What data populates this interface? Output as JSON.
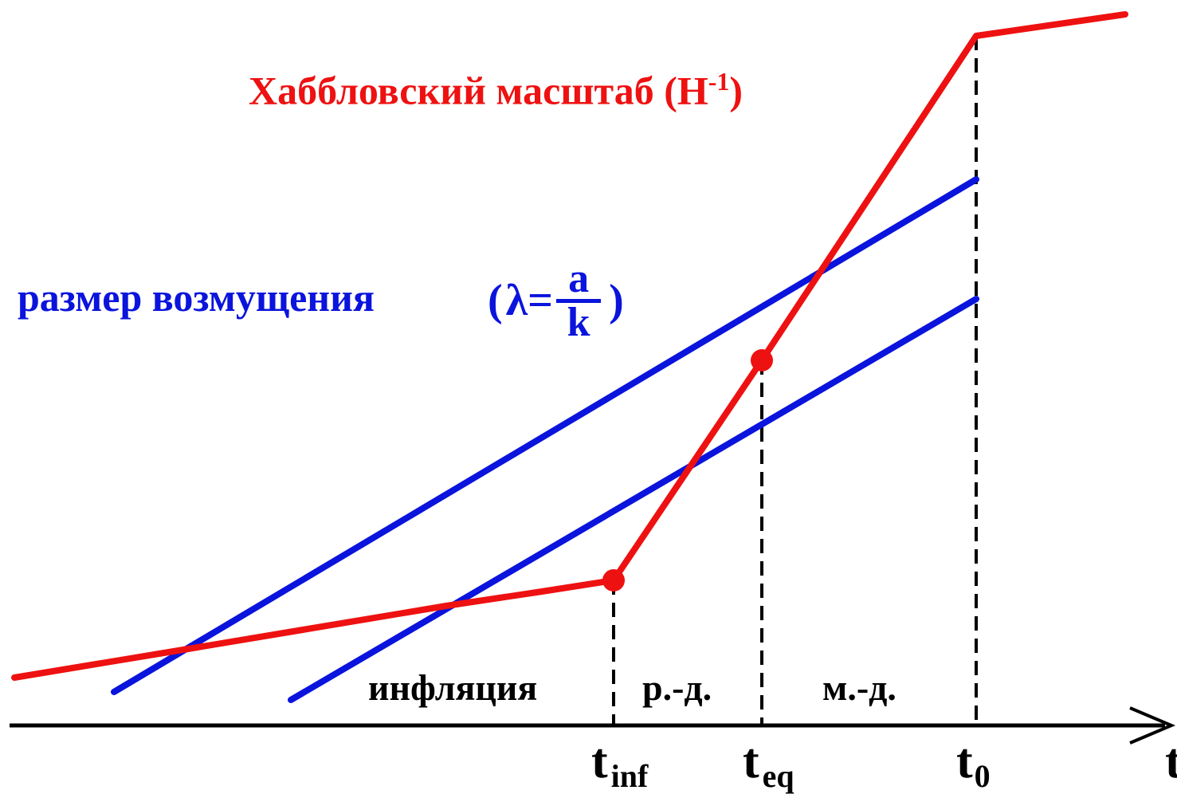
{
  "labels": {
    "hubble_scale": "Хаббловский  масштаб (",
    "hubble_H": "H",
    "hubble_exp": "-1",
    "hubble_close": ")",
    "perturbation_size": "размер возмущения",
    "lambda_open": "(",
    "lambda_symbol": "λ",
    "lambda_equals": "=",
    "frac_num": "a",
    "frac_den": "k",
    "lambda_close": ")",
    "phase_inflation": "инфляция",
    "phase_rd": "р.-д.",
    "phase_md": "м.-д.",
    "t_inf_main": "t",
    "t_inf_sub": "inf",
    "t_eq_main": "t",
    "t_eq_sub": "eq",
    "t_0_main": "t",
    "t_0_sub": "0",
    "t_axis": "t"
  },
  "colors": {
    "hubble": "#ee1111",
    "perturbation": "#0a14dc",
    "axis": "#000000"
  }
}
